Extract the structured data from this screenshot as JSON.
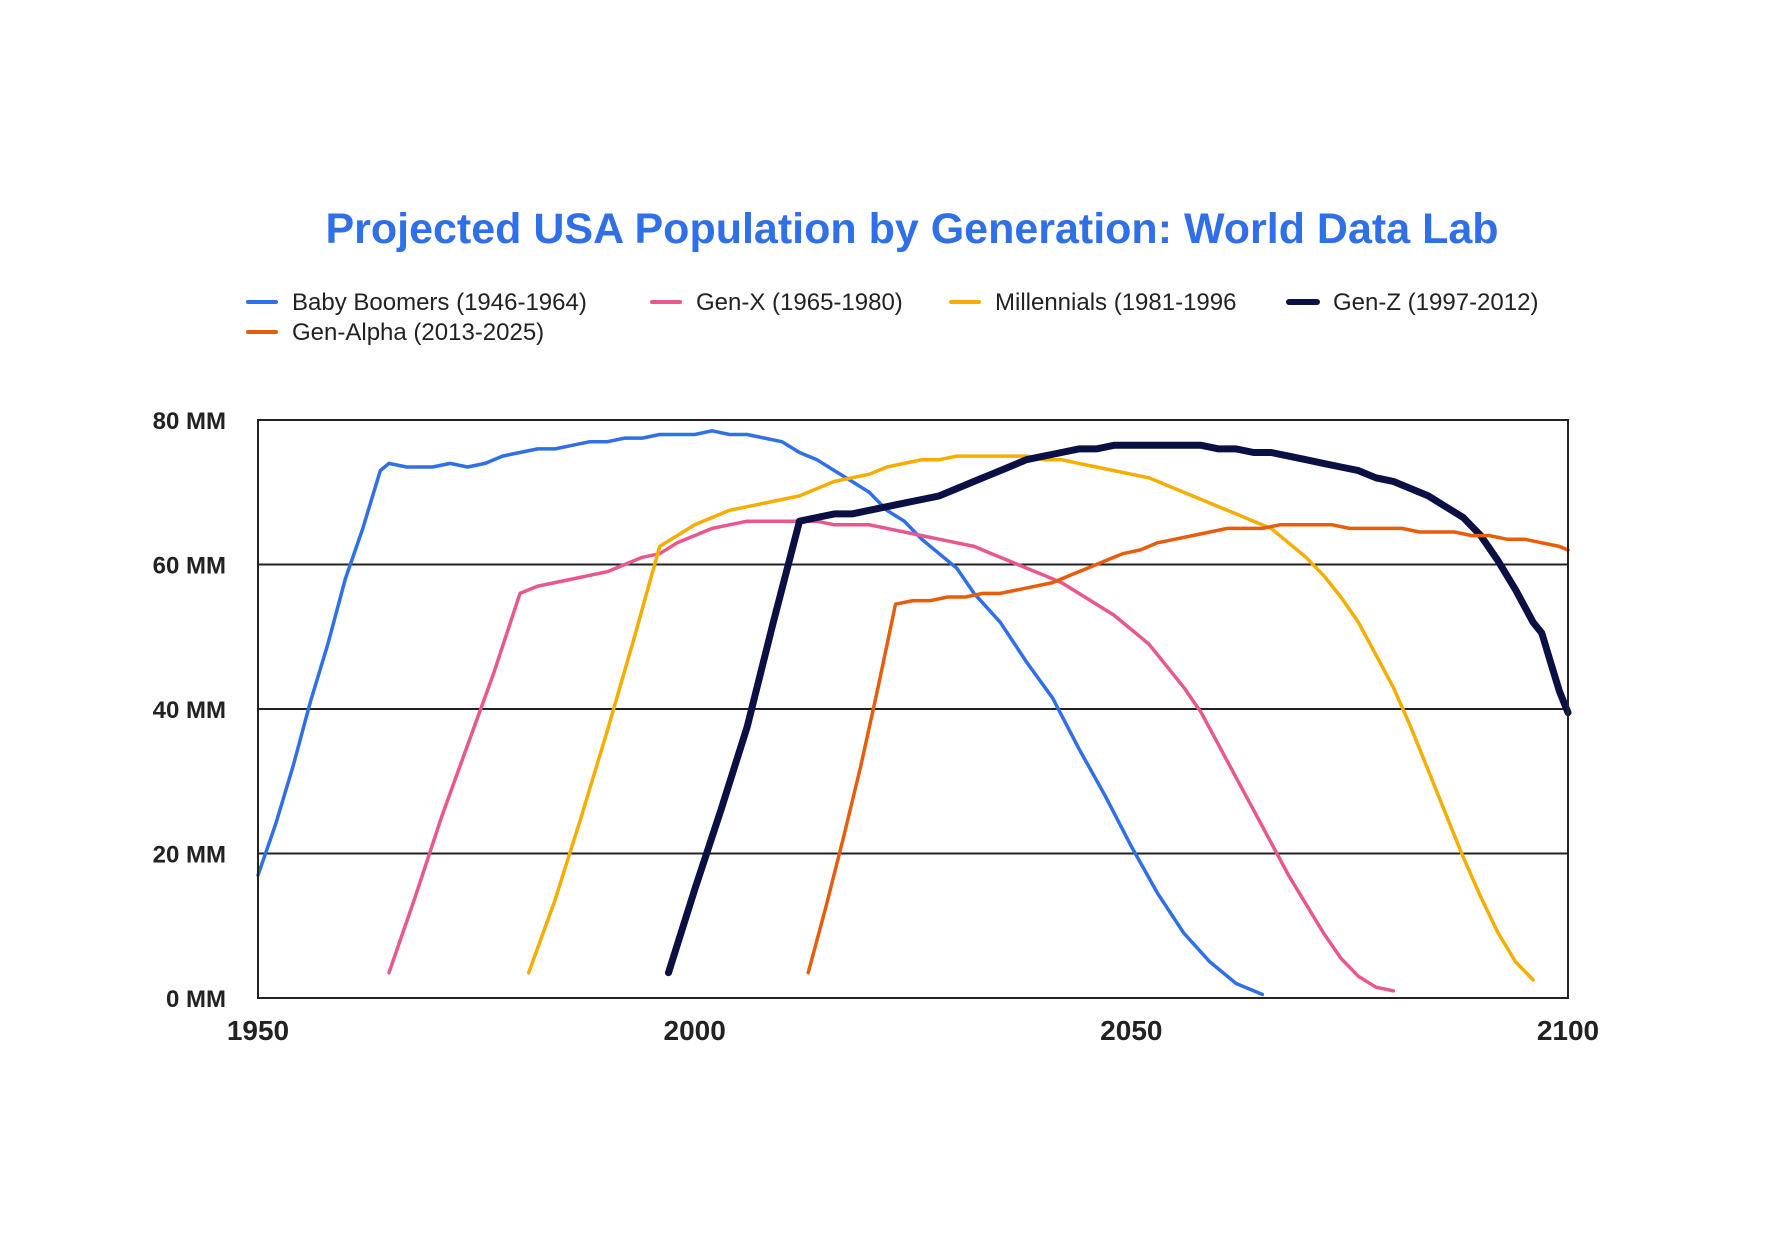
{
  "chart_data": {
    "type": "line",
    "title": "Projected USA Population by Generation: World Data Lab",
    "title_color": "#2f6fe8",
    "xlabel": "",
    "ylabel": "",
    "xlim": [
      1950,
      2100
    ],
    "ylim": [
      0,
      80
    ],
    "x_ticks": [
      {
        "value": 1950,
        "label": "1950"
      },
      {
        "value": 2000,
        "label": "2000"
      },
      {
        "value": 2050,
        "label": "2050"
      },
      {
        "value": 2100,
        "label": "2100"
      }
    ],
    "y_ticks": [
      {
        "value": 0,
        "label": "0 MM"
      },
      {
        "value": 20,
        "label": "20 MM"
      },
      {
        "value": 40,
        "label": "40 MM"
      },
      {
        "value": 60,
        "label": "60 MM"
      },
      {
        "value": 80,
        "label": "80 MM"
      }
    ],
    "grid": "horizontal",
    "legend_position": "top",
    "series": [
      {
        "name": "Baby Boomers (1946-1964)",
        "color": "#2f6fe8",
        "points": [
          [
            1950,
            17
          ],
          [
            1952,
            24
          ],
          [
            1954,
            32
          ],
          [
            1956,
            41
          ],
          [
            1958,
            49
          ],
          [
            1960,
            58
          ],
          [
            1962,
            65
          ],
          [
            1964,
            73
          ],
          [
            1965,
            74
          ],
          [
            1967,
            73.5
          ],
          [
            1970,
            73.5
          ],
          [
            1972,
            74
          ],
          [
            1974,
            73.5
          ],
          [
            1976,
            74
          ],
          [
            1978,
            75
          ],
          [
            1980,
            75.5
          ],
          [
            1982,
            76
          ],
          [
            1984,
            76
          ],
          [
            1986,
            76.5
          ],
          [
            1988,
            77
          ],
          [
            1990,
            77
          ],
          [
            1992,
            77.5
          ],
          [
            1994,
            77.5
          ],
          [
            1996,
            78
          ],
          [
            1998,
            78
          ],
          [
            2000,
            78
          ],
          [
            2002,
            78.5
          ],
          [
            2004,
            78
          ],
          [
            2006,
            78
          ],
          [
            2008,
            77.5
          ],
          [
            2010,
            77
          ],
          [
            2012,
            75.5
          ],
          [
            2014,
            74.5
          ],
          [
            2016,
            73
          ],
          [
            2018,
            71.5
          ],
          [
            2020,
            70
          ],
          [
            2022,
            67.5
          ],
          [
            2024,
            66
          ],
          [
            2026,
            63.5
          ],
          [
            2028,
            61.5
          ],
          [
            2030,
            59.5
          ],
          [
            2032,
            56
          ],
          [
            2035,
            52
          ],
          [
            2038,
            46.5
          ],
          [
            2041,
            41.5
          ],
          [
            2044,
            34.5
          ],
          [
            2047,
            28
          ],
          [
            2050,
            21
          ],
          [
            2053,
            14.5
          ],
          [
            2056,
            9
          ],
          [
            2059,
            5
          ],
          [
            2062,
            2
          ],
          [
            2065,
            0.5
          ]
        ]
      },
      {
        "name": "Gen-X (1965-1980)",
        "color": "#e8578d",
        "points": [
          [
            1965,
            3.5
          ],
          [
            1968,
            14
          ],
          [
            1971,
            25
          ],
          [
            1974,
            35
          ],
          [
            1977,
            45
          ],
          [
            1980,
            56
          ],
          [
            1982,
            57
          ],
          [
            1984,
            57.5
          ],
          [
            1986,
            58
          ],
          [
            1988,
            58.5
          ],
          [
            1990,
            59
          ],
          [
            1992,
            60
          ],
          [
            1994,
            61
          ],
          [
            1996,
            61.5
          ],
          [
            1998,
            63
          ],
          [
            2000,
            64
          ],
          [
            2002,
            65
          ],
          [
            2004,
            65.5
          ],
          [
            2006,
            66
          ],
          [
            2008,
            66
          ],
          [
            2010,
            66
          ],
          [
            2012,
            66
          ],
          [
            2014,
            66
          ],
          [
            2016,
            65.5
          ],
          [
            2018,
            65.5
          ],
          [
            2020,
            65.5
          ],
          [
            2022,
            65
          ],
          [
            2024,
            64.5
          ],
          [
            2026,
            64
          ],
          [
            2028,
            63.5
          ],
          [
            2030,
            63
          ],
          [
            2032,
            62.5
          ],
          [
            2034,
            61.5
          ],
          [
            2036,
            60.5
          ],
          [
            2038,
            59.5
          ],
          [
            2040,
            58.5
          ],
          [
            2042,
            57.5
          ],
          [
            2044,
            56
          ],
          [
            2046,
            54.5
          ],
          [
            2048,
            53
          ],
          [
            2050,
            51
          ],
          [
            2052,
            49
          ],
          [
            2054,
            46
          ],
          [
            2056,
            43
          ],
          [
            2058,
            39.5
          ],
          [
            2060,
            35
          ],
          [
            2062,
            30.5
          ],
          [
            2064,
            26
          ],
          [
            2066,
            21.5
          ],
          [
            2068,
            17
          ],
          [
            2070,
            13
          ],
          [
            2072,
            9
          ],
          [
            2074,
            5.5
          ],
          [
            2076,
            3
          ],
          [
            2078,
            1.5
          ],
          [
            2080,
            1
          ]
        ]
      },
      {
        "name": "Millennials (1981-1996",
        "color": "#f5ae00",
        "points": [
          [
            1981,
            3.5
          ],
          [
            1984,
            13.5
          ],
          [
            1987,
            25
          ],
          [
            1990,
            37
          ],
          [
            1993,
            49.5
          ],
          [
            1996,
            62.5
          ],
          [
            1998,
            64
          ],
          [
            2000,
            65.5
          ],
          [
            2002,
            66.5
          ],
          [
            2004,
            67.5
          ],
          [
            2006,
            68
          ],
          [
            2008,
            68.5
          ],
          [
            2010,
            69
          ],
          [
            2012,
            69.5
          ],
          [
            2014,
            70.5
          ],
          [
            2016,
            71.5
          ],
          [
            2018,
            72
          ],
          [
            2020,
            72.5
          ],
          [
            2022,
            73.5
          ],
          [
            2024,
            74
          ],
          [
            2026,
            74.5
          ],
          [
            2028,
            74.5
          ],
          [
            2030,
            75
          ],
          [
            2032,
            75
          ],
          [
            2034,
            75
          ],
          [
            2036,
            75
          ],
          [
            2038,
            75
          ],
          [
            2040,
            74.5
          ],
          [
            2042,
            74.5
          ],
          [
            2044,
            74
          ],
          [
            2046,
            73.5
          ],
          [
            2048,
            73
          ],
          [
            2050,
            72.5
          ],
          [
            2052,
            72
          ],
          [
            2054,
            71
          ],
          [
            2056,
            70
          ],
          [
            2058,
            69
          ],
          [
            2060,
            68
          ],
          [
            2062,
            67
          ],
          [
            2064,
            66
          ],
          [
            2066,
            65
          ],
          [
            2068,
            63
          ],
          [
            2070,
            61
          ],
          [
            2072,
            58.5
          ],
          [
            2074,
            55.5
          ],
          [
            2076,
            52
          ],
          [
            2078,
            47.5
          ],
          [
            2080,
            43
          ],
          [
            2082,
            37.5
          ],
          [
            2084,
            31.5
          ],
          [
            2086,
            25.5
          ],
          [
            2088,
            19.5
          ],
          [
            2090,
            14
          ],
          [
            2092,
            9
          ],
          [
            2094,
            5
          ],
          [
            2096,
            2.5
          ]
        ]
      },
      {
        "name": "Gen-Z (1997-2012)",
        "color": "#0b1044",
        "points": [
          [
            1997,
            3.5
          ],
          [
            2000,
            15
          ],
          [
            2003,
            26
          ],
          [
            2006,
            37.5
          ],
          [
            2009,
            52
          ],
          [
            2012,
            66
          ],
          [
            2014,
            66.5
          ],
          [
            2016,
            67
          ],
          [
            2018,
            67
          ],
          [
            2020,
            67.5
          ],
          [
            2022,
            68
          ],
          [
            2024,
            68.5
          ],
          [
            2026,
            69
          ],
          [
            2028,
            69.5
          ],
          [
            2030,
            70.5
          ],
          [
            2032,
            71.5
          ],
          [
            2034,
            72.5
          ],
          [
            2036,
            73.5
          ],
          [
            2038,
            74.5
          ],
          [
            2040,
            75
          ],
          [
            2042,
            75.5
          ],
          [
            2044,
            76
          ],
          [
            2046,
            76
          ],
          [
            2048,
            76.5
          ],
          [
            2050,
            76.5
          ],
          [
            2052,
            76.5
          ],
          [
            2054,
            76.5
          ],
          [
            2056,
            76.5
          ],
          [
            2058,
            76.5
          ],
          [
            2060,
            76
          ],
          [
            2062,
            76
          ],
          [
            2064,
            75.5
          ],
          [
            2066,
            75.5
          ],
          [
            2068,
            75
          ],
          [
            2070,
            74.5
          ],
          [
            2072,
            74
          ],
          [
            2074,
            73.5
          ],
          [
            2076,
            73
          ],
          [
            2078,
            72
          ],
          [
            2080,
            71.5
          ],
          [
            2082,
            70.5
          ],
          [
            2084,
            69.5
          ],
          [
            2086,
            68
          ],
          [
            2088,
            66.5
          ],
          [
            2090,
            64
          ],
          [
            2092,
            60.5
          ],
          [
            2094,
            56.5
          ],
          [
            2096,
            52
          ],
          [
            2097,
            50.5
          ],
          [
            2098,
            46.5
          ],
          [
            2099,
            42.5
          ],
          [
            2100,
            39.5
          ]
        ]
      },
      {
        "name": "Gen-Alpha (2013-2025)",
        "color": "#e85d0c",
        "points": [
          [
            2013,
            3.5
          ],
          [
            2015,
            12.5
          ],
          [
            2017,
            22
          ],
          [
            2019,
            32
          ],
          [
            2021,
            43
          ],
          [
            2023,
            54.5
          ],
          [
            2025,
            55
          ],
          [
            2027,
            55
          ],
          [
            2029,
            55.5
          ],
          [
            2031,
            55.5
          ],
          [
            2033,
            56
          ],
          [
            2035,
            56
          ],
          [
            2037,
            56.5
          ],
          [
            2039,
            57
          ],
          [
            2041,
            57.5
          ],
          [
            2043,
            58.5
          ],
          [
            2045,
            59.5
          ],
          [
            2047,
            60.5
          ],
          [
            2049,
            61.5
          ],
          [
            2051,
            62
          ],
          [
            2053,
            63
          ],
          [
            2055,
            63.5
          ],
          [
            2057,
            64
          ],
          [
            2059,
            64.5
          ],
          [
            2061,
            65
          ],
          [
            2063,
            65
          ],
          [
            2065,
            65
          ],
          [
            2067,
            65.5
          ],
          [
            2069,
            65.5
          ],
          [
            2071,
            65.5
          ],
          [
            2073,
            65.5
          ],
          [
            2075,
            65
          ],
          [
            2077,
            65
          ],
          [
            2079,
            65
          ],
          [
            2081,
            65
          ],
          [
            2083,
            64.5
          ],
          [
            2085,
            64.5
          ],
          [
            2087,
            64.5
          ],
          [
            2089,
            64
          ],
          [
            2091,
            64
          ],
          [
            2093,
            63.5
          ],
          [
            2095,
            63.5
          ],
          [
            2097,
            63
          ],
          [
            2099,
            62.5
          ],
          [
            2100,
            62
          ]
        ]
      }
    ]
  }
}
